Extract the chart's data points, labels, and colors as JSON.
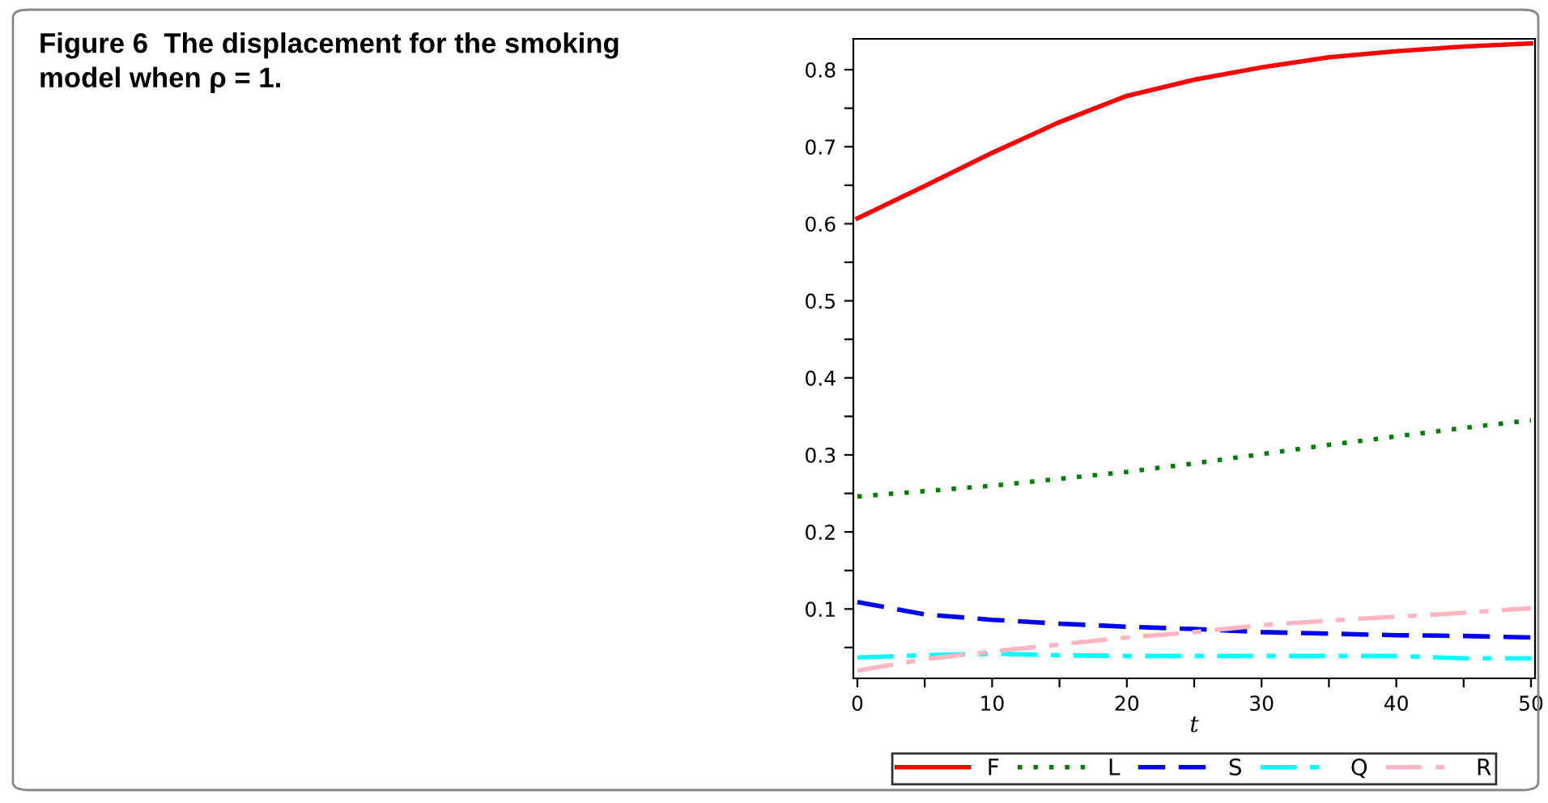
{
  "chart_data": {
    "type": "line",
    "title": "Figure 6  The displacement for the smoking model when ρ = 1.",
    "xlabel": "t",
    "x": [
      0,
      5,
      10,
      15,
      20,
      25,
      30,
      35,
      40,
      45,
      50
    ],
    "series": [
      {
        "name": "F",
        "color": "#ff0000",
        "line_style": "solid",
        "values": [
          0.607,
          0.649,
          0.692,
          0.732,
          0.766,
          0.787,
          0.803,
          0.816,
          0.824,
          0.83,
          0.834
        ]
      },
      {
        "name": "L",
        "color": "#008000",
        "line_style": "dotted",
        "values": [
          0.246,
          0.253,
          0.26,
          0.269,
          0.278,
          0.289,
          0.301,
          0.313,
          0.324,
          0.335,
          0.345
        ]
      },
      {
        "name": "S",
        "color": "#0000ff",
        "line_style": "dashed",
        "values": [
          0.109,
          0.093,
          0.086,
          0.081,
          0.077,
          0.074,
          0.07,
          0.068,
          0.066,
          0.065,
          0.063
        ]
      },
      {
        "name": "Q",
        "color": "#00ffff",
        "line_style": "dashdot",
        "values": [
          0.037,
          0.04,
          0.042,
          0.04,
          0.039,
          0.039,
          0.039,
          0.039,
          0.039,
          0.036,
          0.036
        ]
      },
      {
        "name": "R",
        "color": "#ffb6c1",
        "line_style": "dashdot",
        "values": [
          0.02,
          0.035,
          0.045,
          0.054,
          0.063,
          0.07,
          0.079,
          0.085,
          0.09,
          0.095,
          0.101
        ]
      }
    ],
    "xlim": [
      -0.3,
      50.3
    ],
    "ylim": [
      0.01,
      0.84
    ],
    "xticks": [
      0,
      {
        "value": 5,
        "label": null
      },
      10,
      {
        "value": 15,
        "label": null
      },
      20,
      {
        "value": 25,
        "label": null
      },
      30,
      {
        "value": 35,
        "label": null
      },
      40,
      {
        "value": 45,
        "label": null
      },
      50
    ],
    "yticks": [
      {
        "value": 0.05,
        "label": null
      },
      0.1,
      {
        "value": 0.15,
        "label": null
      },
      0.2,
      {
        "value": 0.25,
        "label": null
      },
      0.3,
      {
        "value": 0.35,
        "label": null
      },
      0.4,
      {
        "value": 0.45,
        "label": null
      },
      0.5,
      {
        "value": 0.55,
        "label": null
      },
      0.6,
      {
        "value": 0.65,
        "label": null
      },
      0.7,
      {
        "value": 0.75,
        "label": null
      },
      0.8
    ],
    "grid": false,
    "legend": "bottom"
  }
}
